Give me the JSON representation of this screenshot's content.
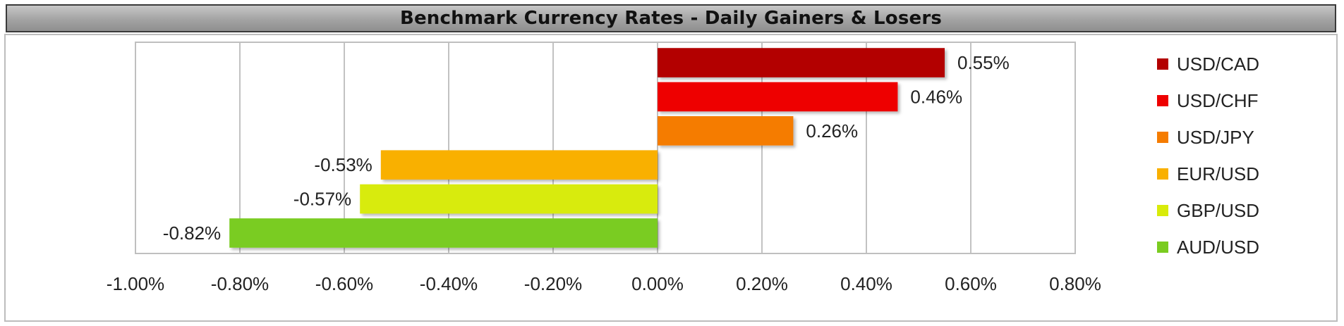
{
  "chart_data": {
    "type": "bar",
    "orientation": "horizontal",
    "title": "Benchmark Currency Rates - Daily Gainers & Losers",
    "xlabel": "",
    "ylabel": "",
    "xlim": [
      -1.0,
      0.8
    ],
    "x_ticks": [
      -1.0,
      -0.8,
      -0.6,
      -0.4,
      -0.2,
      0.0,
      0.2,
      0.4,
      0.6,
      0.8
    ],
    "x_tick_labels": [
      "-1.00%",
      "-0.80%",
      "-0.60%",
      "-0.40%",
      "-0.20%",
      "0.00%",
      "0.20%",
      "0.40%",
      "0.60%",
      "0.80%"
    ],
    "unit": "%",
    "grid": "vertical",
    "legend": "right",
    "categories": [
      "USD/CAD",
      "USD/CHF",
      "USD/JPY",
      "EUR/USD",
      "GBP/USD",
      "AUD/USD"
    ],
    "values": [
      0.55,
      0.46,
      0.26,
      -0.53,
      -0.57,
      -0.82
    ],
    "value_labels": [
      "0.55%",
      "0.46%",
      "0.26%",
      "-0.53%",
      "-0.57%",
      "-0.82%"
    ],
    "colors": [
      "#B30000",
      "#EE0000",
      "#F57C00",
      "#F9B000",
      "#D8EB0A",
      "#7ACC20"
    ]
  }
}
